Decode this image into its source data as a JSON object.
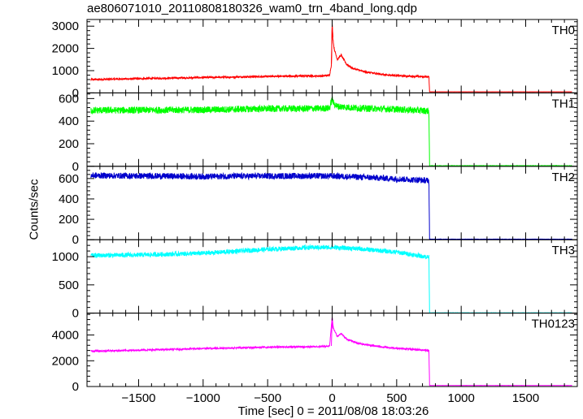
{
  "chart_data": {
    "type": "line",
    "title": "ae806071010_20110808180326_wam0_trn_4band_long.qdp",
    "xlabel": "Time [sec] 0 = 2011/08/08 18:03:26",
    "ylabel": "Counts/sec",
    "xlim": [
      -1900,
      1900
    ],
    "x_ticks": [
      -1500,
      -1000,
      -500,
      0,
      500,
      1000,
      1500
    ],
    "x_tick_labels": [
      "−1500",
      "−1000",
      "−500",
      "0",
      "500",
      "1000",
      "1500"
    ],
    "grid": false,
    "panels": [
      {
        "name": "TH0",
        "color": "#ff0000",
        "ylim": [
          0,
          3300
        ],
        "y_ticks": [
          0,
          1000,
          2000,
          3000
        ],
        "y_tick_labels": [
          "0",
          "1000",
          "2000",
          "3000"
        ],
        "points": [
          [
            -1870,
            600
          ],
          [
            -1500,
            640
          ],
          [
            -1000,
            690
          ],
          [
            -500,
            740
          ],
          [
            -200,
            760
          ],
          [
            -60,
            760
          ],
          [
            -20,
            800
          ],
          [
            -5,
            1300
          ],
          [
            0,
            3100
          ],
          [
            5,
            2500
          ],
          [
            15,
            2000
          ],
          [
            40,
            1500
          ],
          [
            70,
            1700
          ],
          [
            110,
            1300
          ],
          [
            160,
            1100
          ],
          [
            250,
            950
          ],
          [
            400,
            820
          ],
          [
            550,
            760
          ],
          [
            750,
            720
          ],
          [
            755,
            50
          ],
          [
            1860,
            50
          ]
        ],
        "noise": 40
      },
      {
        "name": "TH1",
        "color": "#00ff00",
        "ylim": [
          0,
          650
        ],
        "y_ticks": [
          0,
          200,
          400,
          600
        ],
        "y_tick_labels": [
          "0",
          "200",
          "400",
          "600"
        ],
        "points": [
          [
            -1870,
            495
          ],
          [
            -1000,
            500
          ],
          [
            -500,
            510
          ],
          [
            -100,
            512
          ],
          [
            -20,
            515
          ],
          [
            0,
            600
          ],
          [
            10,
            560
          ],
          [
            40,
            530
          ],
          [
            200,
            515
          ],
          [
            500,
            505
          ],
          [
            750,
            490
          ],
          [
            755,
            5
          ],
          [
            1860,
            5
          ]
        ],
        "noise": 30
      },
      {
        "name": "TH2",
        "color": "#0000cc",
        "ylim": [
          0,
          720
        ],
        "y_ticks": [
          0,
          200,
          400,
          600
        ],
        "y_tick_labels": [
          "0",
          "200",
          "400",
          "600"
        ],
        "points": [
          [
            -1870,
            630
          ],
          [
            -1000,
            620
          ],
          [
            -500,
            625
          ],
          [
            0,
            625
          ],
          [
            300,
            610
          ],
          [
            750,
            580
          ],
          [
            755,
            5
          ],
          [
            1860,
            5
          ]
        ],
        "noise": 30
      },
      {
        "name": "TH3",
        "color": "#00ffff",
        "ylim": [
          0,
          1300
        ],
        "y_ticks": [
          0,
          500,
          1000
        ],
        "y_tick_labels": [
          "0",
          "500",
          "1000"
        ],
        "points": [
          [
            -1870,
            1020
          ],
          [
            -1500,
            1030
          ],
          [
            -1000,
            1060
          ],
          [
            -500,
            1130
          ],
          [
            -200,
            1160
          ],
          [
            0,
            1165
          ],
          [
            200,
            1140
          ],
          [
            500,
            1080
          ],
          [
            750,
            990
          ],
          [
            755,
            5
          ],
          [
            1860,
            5
          ]
        ],
        "noise": 40
      },
      {
        "name": "TH0123",
        "color": "#ff00ff",
        "ylim": [
          0,
          5700
        ],
        "y_ticks": [
          0,
          2000,
          4000
        ],
        "y_tick_labels": [
          "0",
          "2000",
          "4000"
        ],
        "points": [
          [
            -1870,
            2750
          ],
          [
            -1500,
            2820
          ],
          [
            -1000,
            2950
          ],
          [
            -500,
            3050
          ],
          [
            -100,
            3100
          ],
          [
            -20,
            3150
          ],
          [
            0,
            5400
          ],
          [
            10,
            4500
          ],
          [
            40,
            3900
          ],
          [
            70,
            4100
          ],
          [
            110,
            3700
          ],
          [
            200,
            3350
          ],
          [
            400,
            3050
          ],
          [
            600,
            2900
          ],
          [
            750,
            2800
          ],
          [
            755,
            80
          ],
          [
            1860,
            80
          ]
        ],
        "noise": 60
      }
    ]
  }
}
